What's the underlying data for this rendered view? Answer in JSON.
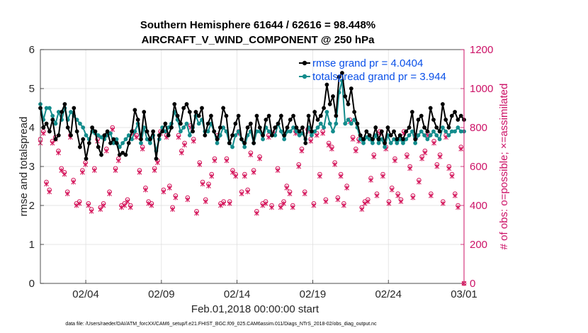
{
  "chart_data": {
    "type": "line",
    "title_line1": "Southern Hemisphere 61644 / 62616 = 98.448%",
    "title_line2": "AIRCRAFT_V_WIND_COMPONENT @ 250 hPa",
    "xlabel": "Feb.01,2018 00:00:00 start",
    "ylabel_left": "rmse and totalspread",
    "ylabel_right": "# of obs: o=possible; ×=assimilated",
    "footer": "data file: /Users/raeder/DAI/ATM_forcXX/CAM6_setup/f.e21.FHIST_BGC.f09_025.CAM6assim.011/Diags_NTrS_2018-02/obs_diag_output.nc",
    "x_range_days": [
      0,
      28
    ],
    "xticks": [
      {
        "day": 3,
        "label": "02/04"
      },
      {
        "day": 8,
        "label": "02/09"
      },
      {
        "day": 13,
        "label": "02/14"
      },
      {
        "day": 18,
        "label": "02/19"
      },
      {
        "day": 23,
        "label": "02/24"
      },
      {
        "day": 28,
        "label": "03/01"
      }
    ],
    "ylim_left": [
      0,
      6
    ],
    "yticks_left": [
      "0",
      "1",
      "2",
      "3",
      "4",
      "5",
      "6"
    ],
    "ylim_right": [
      0,
      1200
    ],
    "yticks_right": [
      "0",
      "200",
      "400",
      "600",
      "800",
      "1000",
      "1200"
    ],
    "colors": {
      "rmse": "#000000",
      "spread": "#138c8c",
      "obs": "#d4145a",
      "right_axis": "#cc1166",
      "legend_text": "#0a50e8"
    },
    "series": [
      {
        "name": "rmse grand pr = 4.0404",
        "values": [
          4.5,
          4.0,
          4.1,
          3.9,
          4.2,
          3.7,
          3.8,
          4.4,
          4.6,
          4.0,
          3.8,
          4.5,
          3.9,
          3.5,
          3.7,
          3.2,
          3.6,
          4.0,
          3.9,
          3.5,
          3.3,
          3.8,
          3.9,
          3.6,
          3.7,
          3.6,
          3.3,
          3.35,
          3.3,
          3.6,
          3.9,
          4.45,
          4.2,
          3.7,
          4.4,
          3.9,
          3.7,
          3.9,
          3.2,
          3.8,
          3.9,
          4.1,
          3.8,
          4.0,
          4.6,
          4.3,
          4.1,
          4.5,
          4.6,
          4.4,
          3.9,
          4.4,
          4.3,
          4.5,
          3.8,
          4.1,
          4.3,
          3.9,
          3.7,
          4.0,
          4.5,
          4.3,
          3.6,
          3.8,
          4.1,
          4.3,
          3.7,
          3.6,
          4.0,
          4.1,
          3.6,
          4.3,
          4.0,
          3.8,
          4.2,
          4.3,
          3.8,
          4.0,
          4.1,
          4.3,
          3.8,
          4.0,
          4.2,
          4.3,
          4.0,
          3.9,
          4.0,
          3.6,
          4.3,
          3.9,
          4.4,
          4.2,
          4.3,
          4.5,
          5.1,
          4.6,
          4.8,
          4.3,
          5.3,
          5.4,
          4.8,
          4.6,
          5.0,
          4.4,
          4.1,
          3.8,
          3.7,
          3.9,
          3.8,
          3.7,
          4.0,
          3.7,
          3.9,
          3.6,
          4.0,
          3.8,
          3.9,
          3.7,
          3.8,
          3.7,
          3.9,
          4.0,
          4.4,
          3.7,
          4.2,
          4.3,
          4.0,
          3.9,
          4.5,
          4.2,
          4.0,
          3.9,
          4.6,
          4.2,
          4.0,
          4.3,
          4.4,
          4.2,
          4.3,
          4.2
        ]
      },
      {
        "name": "totalspread grand pr = 3.944",
        "values": [
          4.6,
          4.2,
          4.5,
          4.5,
          4.3,
          4.1,
          4.4,
          4.2,
          4.5,
          4.2,
          4.4,
          4.3,
          4.2,
          4.1,
          4.0,
          3.8,
          3.7,
          3.9,
          3.85,
          3.8,
          3.75,
          3.7,
          3.8,
          3.85,
          3.6,
          3.7,
          3.5,
          3.6,
          3.7,
          3.8,
          3.7,
          3.9,
          4.1,
          3.6,
          4.0,
          3.7,
          3.6,
          3.8,
          3.4,
          3.7,
          4.0,
          3.9,
          4.0,
          4.1,
          4.4,
          4.2,
          3.9,
          4.0,
          4.1,
          3.8,
          4.0,
          4.3,
          4.1,
          4.2,
          3.9,
          3.9,
          4.1,
          3.9,
          3.6,
          3.8,
          4.0,
          3.9,
          3.6,
          3.5,
          3.8,
          3.9,
          3.7,
          3.5,
          3.8,
          3.9,
          3.6,
          3.9,
          3.9,
          3.7,
          4.0,
          3.9,
          3.8,
          3.8,
          4.1,
          3.9,
          3.7,
          3.9,
          3.9,
          4.0,
          3.9,
          3.8,
          3.85,
          3.7,
          4.0,
          3.8,
          3.9,
          4.0,
          4.1,
          4.0,
          4.4,
          4.1,
          3.9,
          4.1,
          4.9,
          5.2,
          4.1,
          4.2,
          4.1,
          4.2,
          4.0,
          3.7,
          3.6,
          3.75,
          3.7,
          3.6,
          3.8,
          3.6,
          3.7,
          3.5,
          3.8,
          3.6,
          3.7,
          3.6,
          3.7,
          3.6,
          3.7,
          3.8,
          3.9,
          3.6,
          3.8,
          3.9,
          3.8,
          3.7,
          3.8,
          3.9,
          3.8,
          3.7,
          4.0,
          3.9,
          3.8,
          3.9,
          3.9,
          4.0,
          3.9,
          3.9
        ]
      },
      {
        "name": "obs possible",
        "values": [
          740,
          780,
          520,
          480,
          730,
          750,
          680,
          590,
          570,
          470,
          760,
          530,
          410,
          420,
          580,
          620,
          410,
          380,
          590,
          740,
          390,
          410,
          690,
          470,
          800,
          590,
          640,
          400,
          410,
          430,
          400,
          780,
          760,
          580,
          700,
          490,
          420,
          410,
          590,
          630,
          780,
          480,
          760,
          500,
          390,
          450,
          760,
          680,
          720,
          440,
          810,
          740,
          370,
          620,
          520,
          430,
          510,
          560,
          640,
          760,
          410,
          420,
          640,
          420,
          580,
          560,
          780,
          470,
          560,
          480,
          670,
          580,
          370,
          650,
          410,
          420,
          760,
          400,
          780,
          590,
          400,
          420,
          500,
          470,
          400,
          780,
          610,
          690,
          470,
          790,
          740,
          410,
          770,
          560,
          780,
          430,
          720,
          700,
          620,
          440,
          560,
          410,
          500,
          840,
          750,
          690,
          740,
          390,
          420,
          430,
          540,
          660,
          460,
          780,
          560,
          700,
          420,
          490,
          640,
          460,
          430,
          780,
          660,
          600,
          450,
          760,
          530,
          650,
          680,
          770,
          460,
          730,
          610,
          660,
          420,
          760,
          600,
          560,
          460,
          400,
          700,
          0
        ]
      },
      {
        "name": "obs assimilated",
        "values": [
          720,
          770,
          510,
          470,
          720,
          740,
          670,
          580,
          560,
          460,
          750,
          520,
          400,
          410,
          570,
          610,
          400,
          370,
          580,
          730,
          380,
          400,
          680,
          460,
          790,
          580,
          630,
          390,
          400,
          420,
          390,
          770,
          750,
          570,
          690,
          480,
          410,
          400,
          580,
          620,
          770,
          470,
          750,
          490,
          380,
          440,
          750,
          670,
          710,
          430,
          800,
          730,
          360,
          610,
          510,
          420,
          500,
          550,
          630,
          750,
          400,
          410,
          630,
          410,
          570,
          550,
          770,
          460,
          550,
          470,
          660,
          570,
          360,
          640,
          400,
          410,
          750,
          390,
          770,
          580,
          390,
          410,
          490,
          460,
          390,
          770,
          600,
          680,
          460,
          780,
          730,
          400,
          760,
          550,
          770,
          420,
          710,
          690,
          610,
          430,
          550,
          400,
          490,
          830,
          740,
          680,
          730,
          380,
          410,
          420,
          530,
          650,
          450,
          770,
          550,
          690,
          410,
          480,
          630,
          450,
          420,
          770,
          650,
          590,
          440,
          750,
          520,
          640,
          670,
          760,
          450,
          720,
          600,
          650,
          410,
          750,
          590,
          550,
          450,
          390,
          690,
          0
        ]
      }
    ]
  }
}
